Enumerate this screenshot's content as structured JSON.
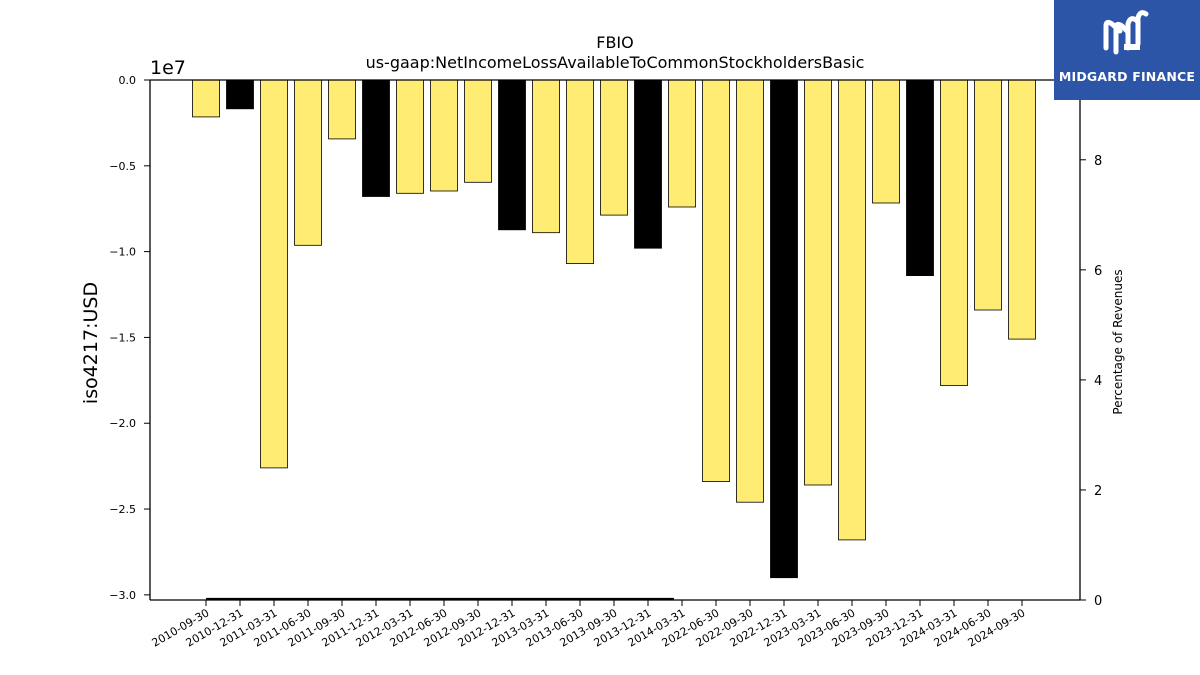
{
  "chart_data": {
    "type": "bar",
    "title": "FBIO",
    "subtitle": "us-gaap:NetIncomeLossAvailableToCommonStockholdersBasic",
    "ylabel": "iso4217:USD",
    "y2label": "Percentage of Revenues",
    "y_offset_label": "1e7",
    "ylim": [
      -3.03,
      0
    ],
    "y_ticks": [
      "0.0",
      "−0.5",
      "−1.0",
      "−1.5",
      "−2.0",
      "−2.5",
      "−3.0"
    ],
    "y_tick_values": [
      0,
      -0.5,
      -1.0,
      -1.5,
      -2.0,
      -2.5,
      -3.0
    ],
    "y2lim": [
      0,
      9.45
    ],
    "y2_ticks": [
      "0",
      "2",
      "4",
      "6",
      "8"
    ],
    "y2_tick_values": [
      0,
      2,
      4,
      6,
      8
    ],
    "categories": [
      "2010-09-30",
      "2010-12-31",
      "2011-03-31",
      "2011-06-30",
      "2011-09-30",
      "2011-12-31",
      "2012-03-31",
      "2012-06-30",
      "2012-09-30",
      "2012-12-31",
      "2013-03-31",
      "2013-06-30",
      "2013-09-30",
      "2013-12-31",
      "2014-03-31",
      "2022-06-30",
      "2022-09-30",
      "2022-12-31",
      "2023-03-31",
      "2023-06-30",
      "2023-09-30",
      "2023-12-31",
      "2024-03-31",
      "2024-06-30",
      "2024-09-30"
    ],
    "values": [
      -2150000,
      -1680000,
      -22600000,
      -9630000,
      -3430000,
      -6790000,
      -6600000,
      -6470000,
      -5960000,
      -8730000,
      -8900000,
      -10700000,
      -7870000,
      -9800000,
      -7400000,
      -23400000,
      -24600000,
      -29000000,
      -23600000,
      -26800000,
      -7170000,
      -11400000,
      -17800000,
      -13400000,
      -15100000
    ],
    "bar_colors": [
      "#ffec73",
      "#000000",
      "#ffec73",
      "#ffec73",
      "#ffec73",
      "#000000",
      "#ffec73",
      "#ffec73",
      "#ffec73",
      "#000000",
      "#ffec73",
      "#ffec73",
      "#ffec73",
      "#000000",
      "#ffec73",
      "#ffec73",
      "#ffec73",
      "#000000",
      "#ffec73",
      "#ffec73",
      "#ffec73",
      "#000000",
      "#ffec73",
      "#ffec73",
      "#ffec73"
    ],
    "secondary_line": {
      "x_start": "2010-09-30",
      "x_end": "2014-03-31",
      "value": 0
    },
    "grid": false
  },
  "logo": {
    "text": "MIDGARD FINANCE",
    "bg_color": "#2c55a8"
  }
}
